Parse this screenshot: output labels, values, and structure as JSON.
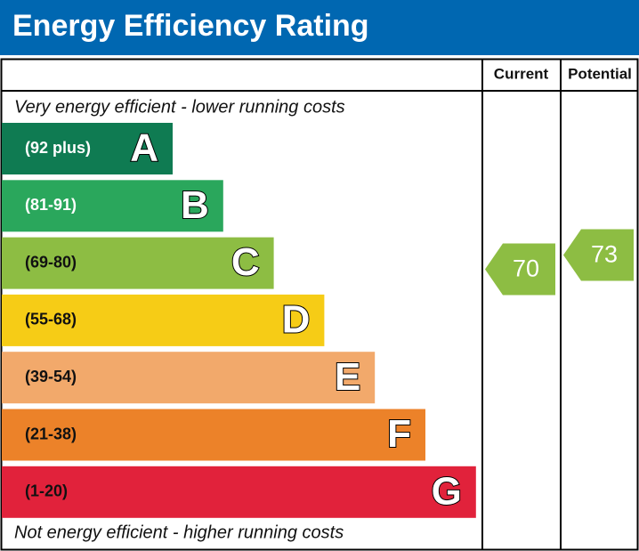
{
  "chart_data": {
    "type": "energy-rating",
    "title": "Energy Efficiency Rating",
    "top_note": "Very energy efficient - lower running costs",
    "bottom_note": "Not energy efficient - higher running costs",
    "bands": [
      {
        "letter": "A",
        "range": "(92 plus)",
        "color": "#0f7b52",
        "text_color": "#ffffff"
      },
      {
        "letter": "B",
        "range": "(81-91)",
        "color": "#2aa75c",
        "text_color": "#ffffff"
      },
      {
        "letter": "C",
        "range": "(69-80)",
        "color": "#8dbd43",
        "text_color": "#111111"
      },
      {
        "letter": "D",
        "range": "(55-68)",
        "color": "#f6cc16",
        "text_color": "#111111"
      },
      {
        "letter": "E",
        "range": "(39-54)",
        "color": "#f2a96b",
        "text_color": "#111111"
      },
      {
        "letter": "F",
        "range": "(21-38)",
        "color": "#ec8229",
        "text_color": "#111111"
      },
      {
        "letter": "G",
        "range": "(1-20)",
        "color": "#e1223b",
        "text_color": "#111111"
      }
    ],
    "series": [
      {
        "name": "Current",
        "values": [
          70
        ],
        "color": "#8dbd43"
      },
      {
        "name": "Potential",
        "values": [
          73
        ],
        "color": "#8dbd43"
      }
    ]
  }
}
